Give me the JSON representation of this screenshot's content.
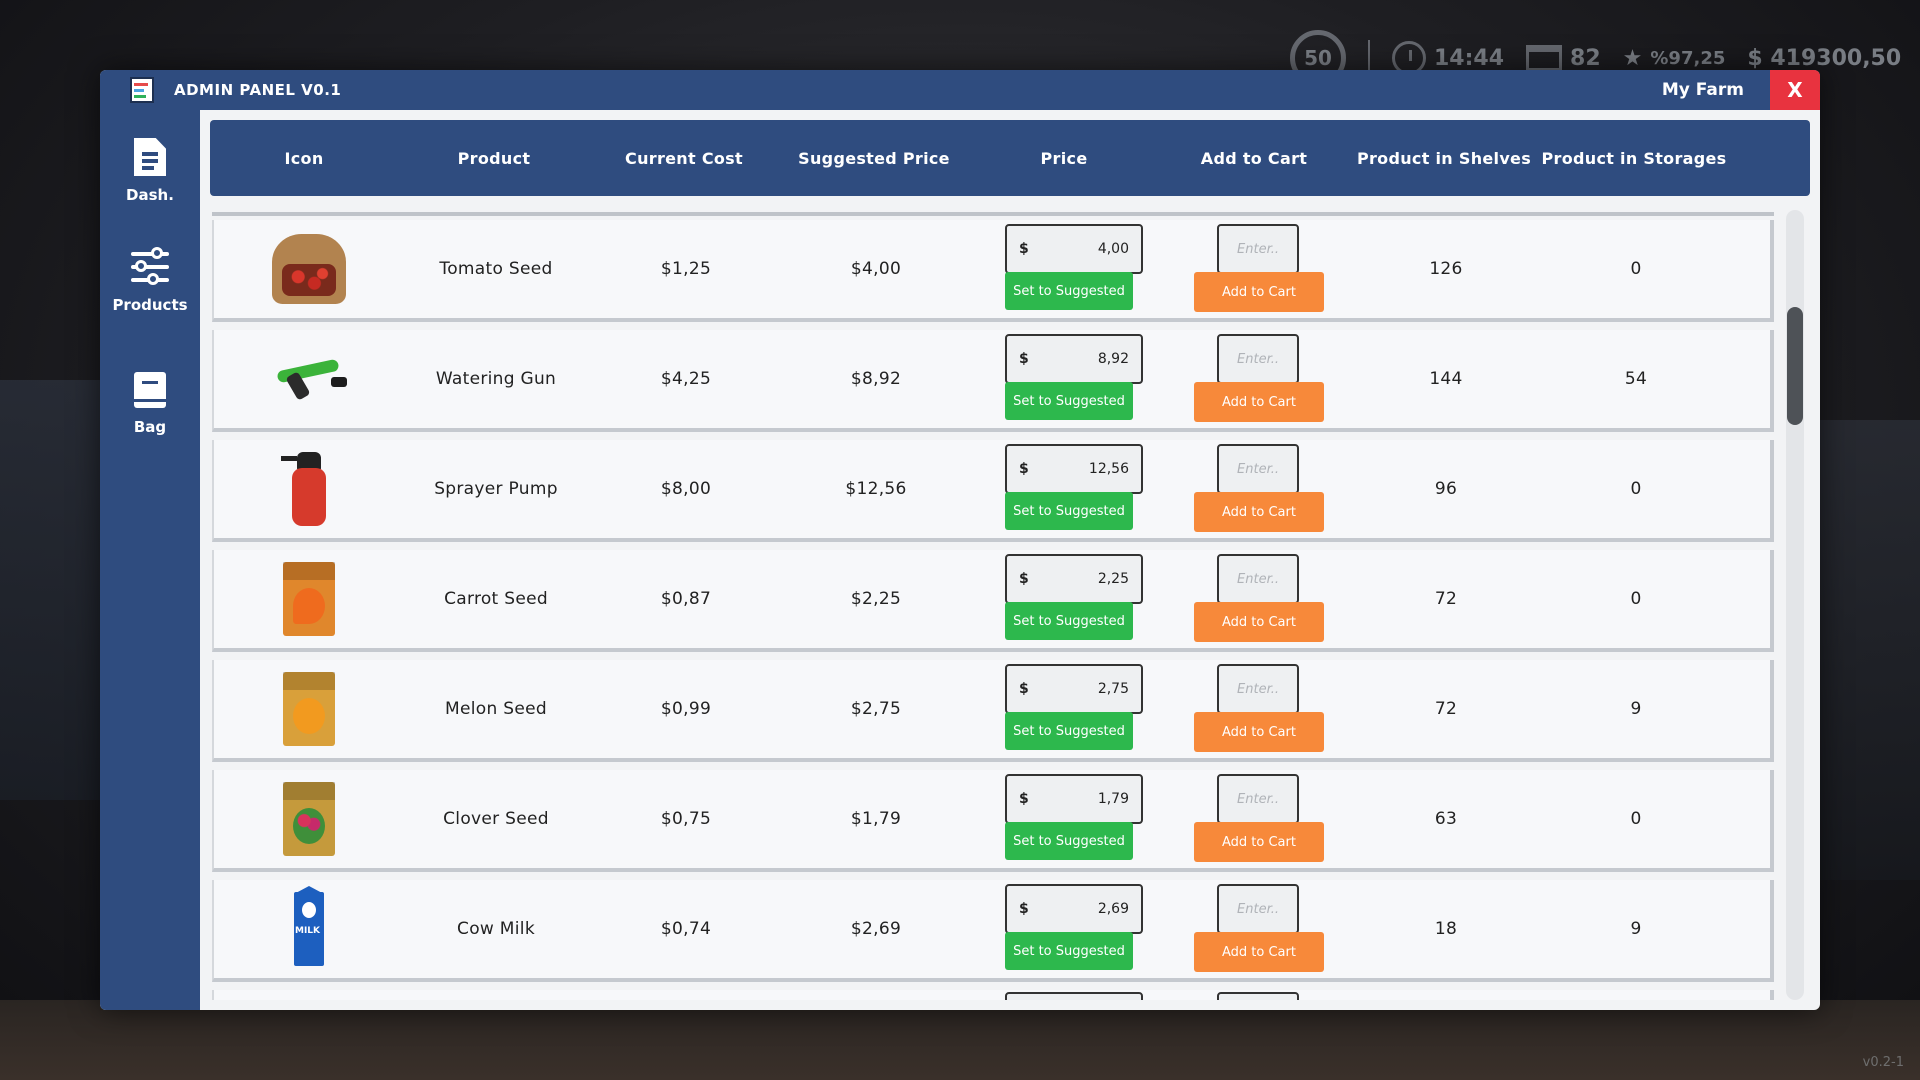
{
  "hud": {
    "level": "50",
    "time": "14:44",
    "day": "82",
    "rating": "%97,25",
    "money": "$ 419300,50"
  },
  "version": "v0.2-1",
  "window": {
    "title": "ADMIN PANEL V0.1",
    "farm_name": "My Farm",
    "close_label": "X"
  },
  "sidebar": {
    "items": [
      {
        "label": "Dash.",
        "icon": "document-icon"
      },
      {
        "label": "Products",
        "icon": "sliders-icon"
      },
      {
        "label": "Bag",
        "icon": "book-icon"
      }
    ]
  },
  "table": {
    "headers": [
      "Icon",
      "Product",
      "Current Cost",
      "Suggested Price",
      "Price",
      "Add to Cart",
      "Product in Shelves",
      "Product in Storages"
    ],
    "currency_symbol": "$",
    "qty_placeholder": "Enter..",
    "suggest_label": "Set to Suggested",
    "cart_label": "Add to Cart",
    "rows": [
      {
        "product": "Tomato Seed",
        "cost": "$1,25",
        "suggested": "$4,00",
        "price": "4,00",
        "shelves": "126",
        "storages": "0",
        "icon": "tomato-seed-sack"
      },
      {
        "product": "Watering Gun",
        "cost": "$4,25",
        "suggested": "$8,92",
        "price": "8,92",
        "shelves": "144",
        "storages": "54",
        "icon": "watering-gun"
      },
      {
        "product": "Sprayer Pump",
        "cost": "$8,00",
        "suggested": "$12,56",
        "price": "12,56",
        "shelves": "96",
        "storages": "0",
        "icon": "sprayer-pump"
      },
      {
        "product": "Carrot Seed",
        "cost": "$0,87",
        "suggested": "$2,25",
        "price": "2,25",
        "shelves": "72",
        "storages": "0",
        "icon": "carrot-seed-packet"
      },
      {
        "product": "Melon Seed",
        "cost": "$0,99",
        "suggested": "$2,75",
        "price": "2,75",
        "shelves": "72",
        "storages": "9",
        "icon": "melon-seed-packet"
      },
      {
        "product": "Clover Seed",
        "cost": "$0,75",
        "suggested": "$1,79",
        "price": "1,79",
        "shelves": "63",
        "storages": "0",
        "icon": "clover-seed-packet"
      },
      {
        "product": "Cow Milk",
        "cost": "$0,74",
        "suggested": "$2,69",
        "price": "2,69",
        "shelves": "18",
        "storages": "9",
        "icon": "milk-carton"
      }
    ]
  },
  "colors": {
    "panel_blue": "#2f4c7f",
    "suggest_green": "#2db84d",
    "cart_orange": "#f7893a",
    "close_red": "#e8333f"
  }
}
